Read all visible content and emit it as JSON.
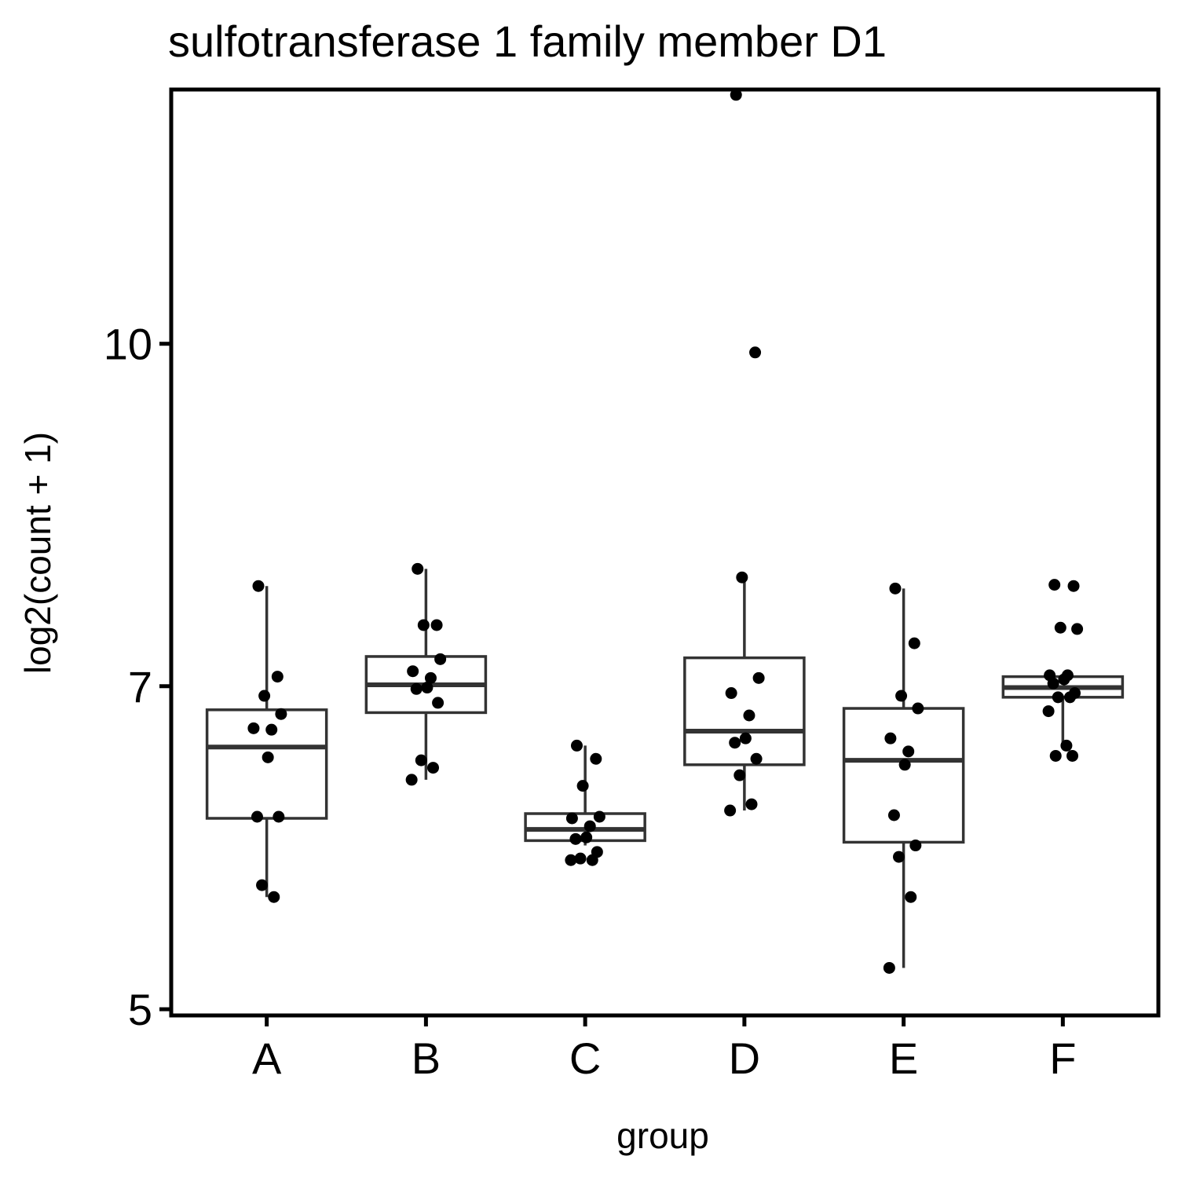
{
  "chart_data": {
    "type": "box",
    "title": "sulfotransferase 1 family member D1",
    "xlabel": "group",
    "ylabel": "log2(count + 1)",
    "y_scale": "log2",
    "ylim": [
      4.98,
      13.0
    ],
    "y_ticks": [
      5,
      7,
      10
    ],
    "y_tick_labels": [
      "5",
      "7",
      "10"
    ],
    "categories": [
      "A",
      "B",
      "C",
      "D",
      "E",
      "F"
    ],
    "grid": false,
    "legend": "none",
    "boxes": [
      {
        "group": "A",
        "whisker_low": 5.62,
        "q1": 6.1,
        "median": 6.57,
        "q3": 6.83,
        "whisker_high": 7.77
      },
      {
        "group": "B",
        "whisker_low": 6.35,
        "q1": 6.81,
        "median": 7.01,
        "q3": 7.22,
        "whisker_high": 7.91
      },
      {
        "group": "C",
        "whisker_low": 5.93,
        "q1": 5.96,
        "median": 6.03,
        "q3": 6.13,
        "whisker_high": 6.58
      },
      {
        "group": "D",
        "whisker_low": 6.15,
        "q1": 6.45,
        "median": 6.68,
        "q3": 7.21,
        "whisker_high": 7.84
      },
      {
        "group": "E",
        "whisker_low": 5.22,
        "q1": 5.95,
        "median": 6.48,
        "q3": 6.84,
        "whisker_high": 7.75
      },
      {
        "group": "F",
        "whisker_low": 6.56,
        "q1": 6.92,
        "median": 6.99,
        "q3": 7.07,
        "whisker_high": 7.08
      }
    ],
    "points": [
      {
        "group": "A",
        "values": [
          7.77,
          7.07,
          6.93,
          6.8,
          6.7,
          6.69,
          6.5,
          6.11,
          6.11,
          5.69,
          5.62
        ]
      },
      {
        "group": "B",
        "values": [
          7.91,
          7.46,
          7.46,
          7.2,
          7.11,
          7.06,
          6.99,
          6.98,
          6.88,
          6.48,
          6.43,
          6.35
        ]
      },
      {
        "group": "C",
        "values": [
          6.58,
          6.49,
          6.31,
          6.11,
          6.1,
          6.05,
          5.98,
          5.97,
          5.89,
          5.85,
          5.84,
          5.84
        ]
      },
      {
        "group": "D",
        "values": [
          12.96,
          9.91,
          7.84,
          7.06,
          6.95,
          6.79,
          6.63,
          6.6,
          6.49,
          6.38,
          6.19,
          6.15
        ]
      },
      {
        "group": "E",
        "values": [
          7.75,
          7.32,
          6.93,
          6.84,
          6.63,
          6.54,
          6.45,
          6.12,
          5.93,
          5.86,
          5.62,
          5.22
        ]
      },
      {
        "group": "F",
        "values": [
          7.78,
          7.77,
          7.44,
          7.43,
          7.08,
          7.08,
          7.05,
          7.02,
          6.95,
          6.92,
          6.92,
          6.82,
          6.58,
          6.51,
          6.51
        ]
      }
    ],
    "colors": {
      "point": "#000000",
      "box_stroke": "#333333",
      "box_fill": "#ffffff",
      "panel_border": "#000000"
    }
  }
}
